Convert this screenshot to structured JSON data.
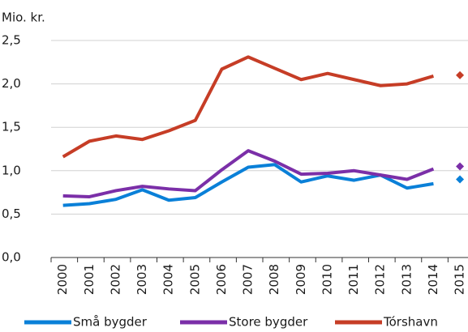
{
  "chart_data": {
    "type": "line",
    "y_label": "Mio. kr.",
    "categories": [
      "2000",
      "2001",
      "2002",
      "2003",
      "2004",
      "2005",
      "2006",
      "2007",
      "2008",
      "2009",
      "2010",
      "2011",
      "2012",
      "2013",
      "2014",
      "2015"
    ],
    "series": [
      {
        "name": "Små bygder",
        "color": "#0a80d8",
        "values": [
          0.6,
          0.62,
          0.67,
          0.78,
          0.66,
          0.69,
          0.87,
          1.04,
          1.07,
          0.87,
          0.94,
          0.89,
          0.95,
          0.8,
          0.85,
          0.9
        ]
      },
      {
        "name": "Store bygder",
        "color": "#7b2fa8",
        "values": [
          0.71,
          0.7,
          0.77,
          0.82,
          0.79,
          0.77,
          1.01,
          1.23,
          1.11,
          0.96,
          0.97,
          1.0,
          0.95,
          0.9,
          1.02,
          1.05
        ]
      },
      {
        "name": "Tórshavn",
        "color": "#c63d26",
        "values": [
          1.16,
          1.34,
          1.4,
          1.36,
          1.46,
          1.58,
          2.17,
          2.31,
          2.18,
          2.05,
          2.12,
          2.05,
          1.98,
          2.0,
          2.09,
          2.1
        ]
      }
    ],
    "last_point_marker": "diamond",
    "ylim": [
      0,
      2.5
    ],
    "yticks": [
      {
        "value": 0,
        "label": "0,0"
      },
      {
        "value": 0.5,
        "label": "0,5"
      },
      {
        "value": 1,
        "label": "1,0"
      },
      {
        "value": 1.5,
        "label": "1,5"
      },
      {
        "value": 2,
        "label": "2,0"
      },
      {
        "value": 2.5,
        "label": "2,5"
      }
    ],
    "grid": true,
    "legend": "bottom"
  }
}
